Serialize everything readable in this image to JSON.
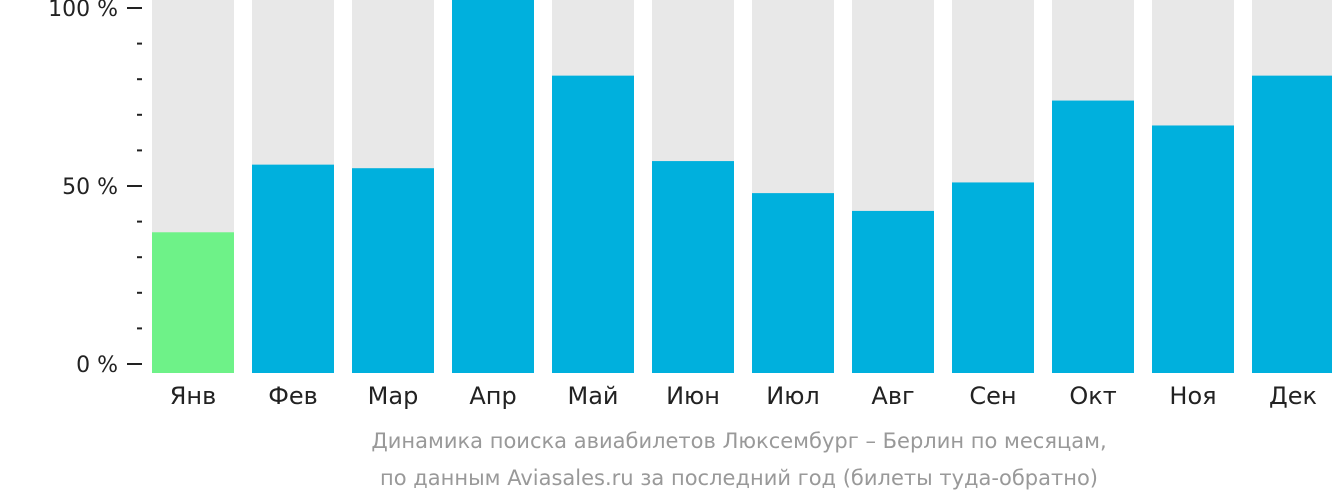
{
  "chart_data": {
    "type": "bar",
    "categories": [
      "Янв",
      "Фев",
      "Мар",
      "Апр",
      "Май",
      "Июн",
      "Июл",
      "Авг",
      "Сен",
      "Окт",
      "Ноя",
      "Дек"
    ],
    "values": [
      37,
      56,
      55,
      100,
      81,
      57,
      48,
      43,
      51,
      74,
      67,
      81
    ],
    "ylim": [
      0,
      100
    ],
    "yticks": [
      {
        "value": 100,
        "label": "100 %"
      },
      {
        "value": 50,
        "label": "50 %"
      },
      {
        "value": 0,
        "label": "0 %"
      }
    ],
    "minor_tick_step": 10,
    "highlight_index": 0,
    "colors": {
      "bar": "#00b0dd",
      "highlight": "#6ef288",
      "track": "#e8e8e8",
      "axis": "#222222"
    }
  },
  "caption": {
    "line1": "Динамика поиска авиабилетов Люксембург – Берлин по месяцам,",
    "line2": "по данным Aviasales.ru за последний год (билеты туда-обратно)"
  }
}
